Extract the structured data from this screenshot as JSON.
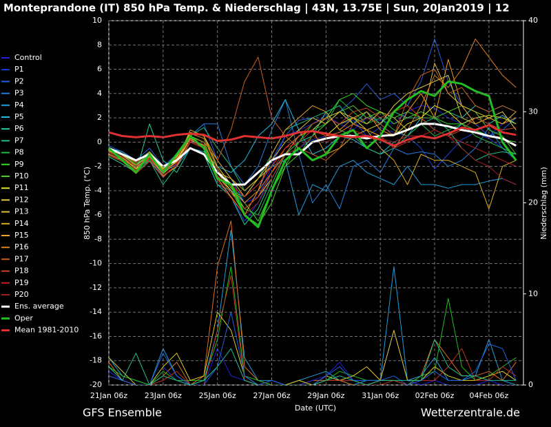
{
  "chart_data": {
    "type": "line",
    "title": "Monteprandone  (IT)  850 hPa Temp. & Niederschlag | 43N, 13.75E | Sun, 20Jan2019 | 12",
    "xlabel": "Date (UTC)",
    "ylabel": "850 hPa Temp. (°C)",
    "y2label": "Niederschlag (mm)",
    "footer_left": "GFS Ensemble",
    "footer_right": "Wetterzentrale.de",
    "legend": "left",
    "grid": true,
    "ylim": [
      -20,
      10
    ],
    "yticks": [
      -20,
      -18,
      -16,
      -14,
      -12,
      -10,
      -8,
      -6,
      -4,
      -2,
      0,
      2,
      4,
      6,
      8,
      10
    ],
    "y2lim": [
      0,
      40
    ],
    "y2ticks": [
      0,
      10,
      20,
      30,
      40
    ],
    "categories": [
      "21Jan 06z",
      null,
      null,
      null,
      "23Jan 06z",
      null,
      null,
      null,
      "25Jan 06z",
      null,
      null,
      null,
      "27Jan 06z",
      null,
      null,
      null,
      "29Jan 06z",
      null,
      null,
      null,
      "31Jan 06z",
      null,
      null,
      null,
      "02Feb 06z",
      null,
      null,
      null,
      "04Feb 06z",
      null,
      null
    ],
    "series": [
      {
        "name": "Control",
        "color": "#2020e0",
        "values": [
          -0.8,
          -1.2,
          -2,
          -1,
          -2.2,
          -1.5,
          0.2,
          -0.5,
          -2.5,
          -4,
          -5,
          -4.5,
          -2,
          0.5,
          1,
          1.5,
          2.2,
          1.5,
          1,
          2,
          1.8,
          1.5,
          2.5,
          3,
          2.8,
          2,
          1.5,
          1,
          0.5,
          1.5,
          2
        ]
      },
      {
        "name": "P1",
        "color": "#1a3ee0",
        "values": [
          -0.5,
          -1,
          -1.8,
          -1.2,
          -2.5,
          -1.8,
          0,
          -0.2,
          -3,
          -4.5,
          -6.5,
          -5,
          -2.5,
          -1,
          -0.5,
          0.2,
          0.5,
          1.5,
          1.8,
          0.5,
          1.2,
          0.8,
          0.5,
          -0.5,
          -2.2,
          -1,
          0.2,
          0.8,
          0.3,
          -0.5,
          -1
        ]
      },
      {
        "name": "P2",
        "color": "#2060e0",
        "values": [
          -0.3,
          -0.8,
          -1.5,
          -0.5,
          -2,
          -1,
          0.5,
          1.5,
          -1.5,
          -3,
          -5,
          -4,
          -1.5,
          0.5,
          1.8,
          2,
          1.5,
          2.5,
          3.5,
          4.8,
          3.5,
          4,
          3,
          5,
          8.5,
          5,
          3,
          1.5,
          0.5,
          1,
          2
        ]
      },
      {
        "name": "P3",
        "color": "#2080e0",
        "values": [
          -1,
          -1.5,
          -2,
          -0.8,
          -2.5,
          -1.2,
          0.5,
          1.5,
          1.5,
          -2,
          -3.5,
          -2,
          1,
          3.5,
          -1,
          -5,
          -3.5,
          -5.5,
          -2,
          -1.5,
          -2.5,
          -0.5,
          -1,
          -0.8,
          -1,
          -2,
          -1.5,
          -0.5,
          1.2,
          -0.5,
          -1.5
        ]
      },
      {
        "name": "P4",
        "color": "#20a0e0",
        "values": [
          -0.7,
          -1.2,
          -2.2,
          -1.5,
          -2.8,
          -2,
          -0.5,
          -1,
          -3.5,
          -4,
          -4.5,
          -3,
          -2,
          -1.5,
          -6,
          -3.5,
          -4,
          -2,
          -1.5,
          -2.5,
          -3,
          -3.5,
          -2,
          -3.5,
          -3.5,
          -3.8,
          -3.5,
          -3.5,
          -3.2,
          -3,
          -3.5
        ]
      },
      {
        "name": "P5",
        "color": "#20c0e0",
        "values": [
          -0.5,
          -0.8,
          -1.5,
          -1,
          -2,
          -1.5,
          -0.5,
          -0.8,
          -2,
          -2.5,
          -1.5,
          0.5,
          1.5,
          3.5,
          1,
          -1,
          -0.5,
          0.5,
          0.2,
          -0.5,
          -1,
          0,
          0.5,
          2,
          1,
          0.5,
          1.5,
          2,
          1.5,
          2.2,
          1.5
        ]
      },
      {
        "name": "P6",
        "color": "#20d0a0",
        "values": [
          -1.2,
          -1.8,
          -2.5,
          1.5,
          -1.5,
          -2.5,
          -0.5,
          -1,
          -3.5,
          -4.5,
          -6.8,
          -5.5,
          -3,
          -1,
          0,
          0.5,
          2.5,
          3,
          1.5,
          2.5,
          1.5,
          2.5,
          2,
          2,
          3,
          2.5,
          2,
          3,
          2.5,
          3,
          2.5
        ]
      },
      {
        "name": "P7",
        "color": "#20c080",
        "values": [
          -1,
          -1.5,
          -2.5,
          -1.5,
          -3.5,
          -2,
          0.5,
          1.2,
          -0.5,
          -2,
          -4,
          -3,
          -1,
          1,
          1.5,
          2,
          2.5,
          1,
          0.5,
          -0.5,
          -1,
          -0.5,
          0.5,
          1.5,
          2,
          1,
          -0.5,
          -1.5,
          -1,
          -0.8,
          -1
        ]
      },
      {
        "name": "P8",
        "color": "#20c040",
        "values": [
          -0.8,
          -1.2,
          -2,
          -1.5,
          -2.5,
          -1.5,
          0.5,
          0,
          -3,
          -3.5,
          -5.5,
          -6,
          -3.5,
          -1,
          0,
          1,
          1.5,
          3.5,
          2.5,
          1.5,
          2,
          1,
          0.5,
          1.5,
          0.5,
          1,
          1.5,
          0.5,
          0,
          -0.5,
          -1
        ]
      },
      {
        "name": "P9",
        "color": "#30e020",
        "values": [
          -0.6,
          -1,
          -1.8,
          -1,
          -2.2,
          -1,
          0.5,
          -0.5,
          -2.5,
          -3.5,
          -5,
          -6.5,
          -4,
          -2,
          0,
          1.5,
          2,
          3.5,
          4,
          3,
          2.5,
          2,
          2.5,
          2,
          2,
          1.5,
          1.5,
          1,
          0.5,
          0.2,
          0
        ]
      },
      {
        "name": "P10",
        "color": "#50d020",
        "values": [
          -0.5,
          -1,
          -2,
          -1.2,
          -2.5,
          -1.5,
          0.5,
          0,
          -2.5,
          -4,
          -6,
          -6.8,
          -5,
          -2,
          -1,
          0.5,
          1.5,
          2.5,
          3,
          2,
          2.5,
          1.5,
          2,
          2.5,
          2,
          2.5,
          3,
          2.5,
          1,
          0.5,
          -1
        ]
      },
      {
        "name": "P11",
        "color": "#e0e020",
        "values": [
          -0.7,
          -1.3,
          -2.2,
          -1,
          -2.2,
          -1.2,
          0.8,
          0.5,
          -2,
          -3.5,
          -4.5,
          -3.5,
          -2,
          -0.5,
          0.5,
          1,
          0.5,
          1.5,
          2,
          1,
          0.5,
          0.5,
          1.5,
          2,
          3,
          2.5,
          1.5,
          2,
          2.2,
          2,
          1.5
        ]
      },
      {
        "name": "P12",
        "color": "#e0d040",
        "values": [
          -0.5,
          -1,
          -1.6,
          -0.8,
          -2,
          -1.4,
          0.2,
          -0.5,
          -2.8,
          -4,
          -5.5,
          -4.5,
          -3,
          -1,
          0.5,
          1,
          2,
          2.5,
          1.5,
          1,
          1.5,
          3,
          4,
          4.5,
          5,
          5.5,
          2,
          1.5,
          2,
          2.5,
          1
        ]
      },
      {
        "name": "P13",
        "color": "#e0c030",
        "values": [
          -0.9,
          -1.4,
          -2.4,
          -1.3,
          -2.6,
          -1.6,
          0.3,
          -0.3,
          -2.5,
          -3,
          -4.5,
          -3,
          -1.5,
          0,
          1,
          2,
          1.5,
          2.5,
          2,
          1.5,
          2.5,
          2,
          1,
          1.5,
          6.5,
          4,
          3,
          2.5,
          2,
          1.5,
          2.5
        ]
      },
      {
        "name": "P14",
        "color": "#e0b020",
        "values": [
          -0.6,
          -1.1,
          -1.9,
          -1.1,
          -2.4,
          -1.6,
          1,
          0.5,
          -1.5,
          -3,
          -4,
          -3,
          -2,
          -0.5,
          0.5,
          1,
          -1,
          -0.5,
          0.5,
          1,
          -0.5,
          -1.5,
          -3.5,
          -1,
          -1.5,
          -1.5,
          -2,
          -2.5,
          -5.5,
          -2,
          -1.5
        ]
      },
      {
        "name": "P15",
        "color": "#f0a020",
        "values": [
          -1,
          -1.5,
          -2.3,
          -1.2,
          -2.8,
          -2,
          0,
          -0.5,
          -3,
          -4.5,
          -6,
          -4,
          -1,
          1,
          2,
          3,
          2.5,
          1,
          2,
          2.5,
          1,
          0.5,
          2.5,
          4,
          2,
          6.8,
          3,
          1.5,
          2,
          1.5,
          2
        ]
      },
      {
        "name": "P16",
        "color": "#e08020",
        "values": [
          -0.8,
          -1.3,
          -2.1,
          -1.1,
          -2.3,
          -1.4,
          0.7,
          0.3,
          -2.2,
          -3.8,
          -5,
          -4,
          -2.5,
          -1,
          0.5,
          1,
          0.5,
          0.8,
          1.5,
          1,
          0.5,
          -0.5,
          1,
          3,
          5.5,
          4.5,
          6,
          8.5,
          7,
          5.5,
          4.5
        ]
      },
      {
        "name": "P17",
        "color": "#d06020",
        "values": [
          -0.5,
          -1,
          -1.7,
          -0.9,
          -2.1,
          -1.3,
          0.4,
          0,
          -1.5,
          1,
          5,
          7,
          2,
          0.5,
          -0.5,
          -1,
          -1.5,
          -0.5,
          1.5,
          2,
          1.5,
          0.5,
          3.5,
          5.5,
          6,
          4,
          4.5,
          3,
          2.5,
          3,
          2.5
        ]
      },
      {
        "name": "P18",
        "color": "#d04020",
        "values": [
          -1.1,
          -1.6,
          -2.6,
          -1.6,
          -2.9,
          -1.8,
          0.2,
          -0.2,
          -2.8,
          -4.2,
          -5.5,
          -4.5,
          -2.5,
          -0.5,
          0.5,
          1.5,
          2,
          1.5,
          2.5,
          2.8,
          2,
          2.5,
          3,
          2,
          1,
          0.5,
          1,
          2,
          1.5,
          1,
          1.2
        ]
      },
      {
        "name": "P19",
        "color": "#c02020",
        "values": [
          -0.8,
          -1.2,
          -2,
          -1.3,
          -2.4,
          -1.7,
          0,
          -0.5,
          -2.8,
          -3.5,
          -4.5,
          -3.5,
          -2,
          -0.5,
          0,
          1,
          0.5,
          0.5,
          1,
          0.5,
          0.5,
          -0.5,
          0,
          0.5,
          1,
          0.5,
          0,
          -0.5,
          -1,
          -1.5,
          -2
        ]
      },
      {
        "name": "P20",
        "color": "#a02020",
        "values": [
          -0.9,
          -1.4,
          -2.3,
          -1.4,
          -2.7,
          -1.9,
          0.1,
          -0.4,
          -3.2,
          -4.6,
          -6,
          -5,
          -3,
          -1,
          -0.5,
          0.5,
          0,
          0.5,
          1,
          0.5,
          0.3,
          0,
          0.5,
          0.5,
          1,
          0.5,
          -0.5,
          -1.5,
          -2,
          -3,
          -3.5
        ]
      },
      {
        "name": "Ens. average",
        "color": "#ffffff",
        "width": 3,
        "values": [
          -0.5,
          -1,
          -1.5,
          -1,
          -2,
          -1.5,
          -0.5,
          -1,
          -2.5,
          -3.5,
          -3.5,
          -2.5,
          -1.5,
          -1,
          -1,
          0,
          0.3,
          0.5,
          0.5,
          0.3,
          0.5,
          0.6,
          1,
          1.5,
          1.5,
          1.3,
          1,
          0.8,
          0.5,
          0.3,
          -0.3
        ]
      },
      {
        "name": "Oper",
        "color": "#20c020",
        "width": 3,
        "values": [
          -0.5,
          -1.5,
          -2.5,
          -1,
          -2.5,
          -1,
          0.5,
          -0.5,
          -3,
          -3.5,
          -6,
          -7,
          -4,
          -1.5,
          -0.5,
          -1.5,
          -1,
          0.5,
          1,
          -0.5,
          0.5,
          2.5,
          3.5,
          4.2,
          3.8,
          5,
          4.8,
          4.2,
          3.8,
          0,
          -1.5
        ]
      },
      {
        "name": "Mean 1981-2010",
        "color": "#e03030",
        "width": 3,
        "values": [
          0.8,
          0.5,
          0.4,
          0.5,
          0.4,
          0.6,
          0.7,
          0.6,
          0.1,
          0.2,
          0.5,
          0.4,
          0.3,
          0.5,
          0.8,
          0.9,
          0.7,
          0.5,
          0.4,
          0.5,
          0.2,
          -0.3,
          0.2,
          0.5,
          0.3,
          0.7,
          1.2,
          1,
          1.4,
          0.8,
          0.6
        ]
      },
      {
        "axis": "y2",
        "color": "#1ea0e0",
        "values": [
          3,
          1,
          0.5,
          0,
          4,
          1,
          0,
          0.5,
          6,
          17,
          3,
          0.5,
          0.5,
          0,
          0.5,
          1,
          1.5,
          0.5,
          0,
          0.5,
          0.5,
          13,
          0.5,
          1,
          3,
          0.5,
          0.5,
          1,
          5,
          0.5,
          0
        ]
      },
      {
        "axis": "y2",
        "color": "#e07020",
        "values": [
          2.5,
          0.5,
          0,
          0,
          1,
          2.5,
          0,
          1,
          13,
          18,
          2,
          0.5,
          0,
          0,
          0,
          0.5,
          0.5,
          0.5,
          0,
          0,
          0.5,
          0.5,
          0,
          1,
          5,
          3,
          1,
          1,
          1.5,
          0.5,
          2.5
        ]
      },
      {
        "axis": "y2",
        "color": "#2020e0",
        "values": [
          1.5,
          0.5,
          0,
          0,
          2,
          0.5,
          0,
          0,
          4,
          1,
          0.5,
          0,
          0,
          0,
          0,
          0.5,
          1,
          2.5,
          0.5,
          0.5,
          0.5,
          6,
          0.5,
          0,
          0.5,
          0,
          0,
          0,
          0.5,
          0,
          0
        ]
      },
      {
        "axis": "y2",
        "color": "#20c020",
        "values": [
          2,
          1,
          0.5,
          0,
          1.5,
          0.5,
          0.5,
          0.5,
          5,
          13,
          1,
          0.5,
          0,
          0,
          0,
          0,
          0.5,
          1.5,
          1,
          0.5,
          0.5,
          0.5,
          0,
          1,
          1.5,
          9.5,
          2,
          0.5,
          1,
          2,
          3
        ]
      },
      {
        "axis": "y2",
        "color": "#e0d020",
        "values": [
          3,
          1.5,
          0,
          0,
          2,
          3.5,
          0.5,
          1,
          8,
          6,
          1,
          0,
          0,
          0,
          0.5,
          0,
          1,
          0.5,
          1,
          2,
          0.5,
          6,
          0.5,
          0.5,
          2,
          1,
          0.5,
          0.5,
          1,
          1.5,
          0.5
        ]
      },
      {
        "axis": "y2",
        "color": "#c03020",
        "values": [
          1,
          0.5,
          0,
          0,
          0.5,
          1.5,
          0,
          0,
          6,
          12,
          0.5,
          0,
          0,
          0,
          0,
          0,
          0.5,
          0.5,
          0.5,
          0,
          0,
          0.5,
          0,
          0.5,
          0.5,
          2,
          4,
          0.5,
          0.5,
          2,
          1
        ]
      },
      {
        "axis": "y2",
        "color": "#2060e0",
        "values": [
          1,
          0.5,
          0,
          0,
          3.5,
          1,
          0,
          0,
          2,
          8,
          1,
          0,
          0.5,
          0,
          0,
          0,
          1,
          2,
          0.5,
          0.5,
          0.5,
          1,
          0,
          0.5,
          1.5,
          0.5,
          0.5,
          1.5,
          4.5,
          4,
          0.5
        ]
      },
      {
        "axis": "y2",
        "color": "#20c090",
        "values": [
          2,
          0.5,
          3.5,
          0,
          1,
          0.5,
          0,
          0.5,
          2,
          4,
          0.5,
          0,
          0,
          0,
          0,
          0,
          0.5,
          1,
          0.5,
          0,
          0.5,
          0.5,
          0.5,
          0.5,
          5,
          2,
          1,
          1,
          0.5,
          0.5,
          0.5
        ]
      }
    ]
  }
}
